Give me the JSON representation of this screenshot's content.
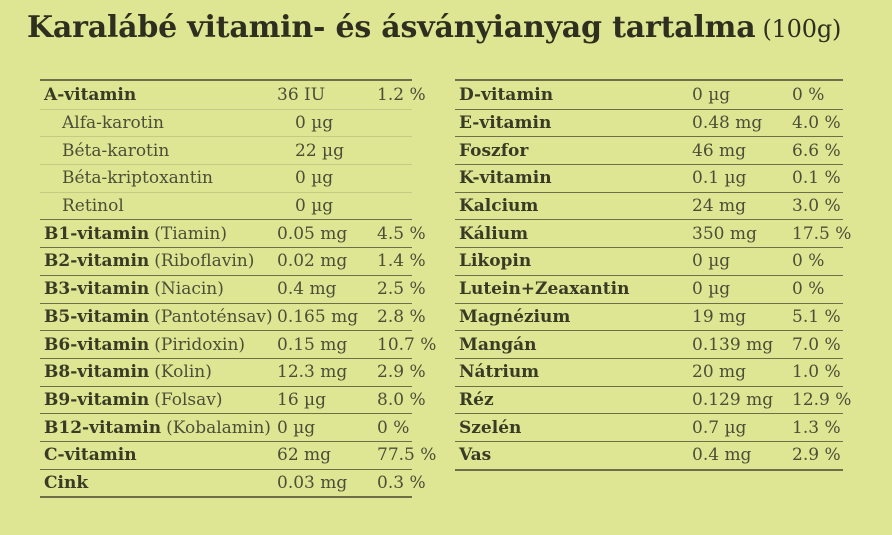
{
  "header": {
    "title": "Karalábé vitamin- és ásványianyag tartalma",
    "serving": "(100g)"
  },
  "theme": {
    "background": "#dee593",
    "title-color": "#2e2f1e",
    "text-strong": "#3a3b25",
    "text-mid": "#4c4e37",
    "dark-line": "#6d6f48",
    "light-line": "#c6ca85"
  },
  "left_table": {
    "rows": [
      {
        "name": "A-vitamin",
        "value": "36 IU",
        "percent": "1.2 %",
        "divider": "none"
      },
      {
        "name": "Alfa-karotin",
        "value": "0 µg",
        "percent": "",
        "divider": "light",
        "indent": true
      },
      {
        "name": "Béta-karotin",
        "value": "22 µg",
        "percent": "",
        "divider": "light",
        "indent": true
      },
      {
        "name": "Béta-kriptoxantin",
        "value": "0 µg",
        "percent": "",
        "divider": "light",
        "indent": true
      },
      {
        "name": "Retinol",
        "value": "0 µg",
        "percent": "",
        "divider": "light",
        "indent": true
      },
      {
        "name": "B1-vitamin",
        "note": "(Tiamin)",
        "value": "0.05 mg",
        "percent": "4.5 %",
        "divider": "dark"
      },
      {
        "name": "B2-vitamin",
        "note": "(Riboflavin)",
        "value": "0.02 mg",
        "percent": "1.4 %",
        "divider": "dark"
      },
      {
        "name": "B3-vitamin",
        "note": "(Niacin)",
        "value": "0.4 mg",
        "percent": "2.5 %",
        "divider": "dark"
      },
      {
        "name": "B5-vitamin",
        "note": "(Pantoténsav)",
        "value": "0.165 mg",
        "percent": "2.8 %",
        "divider": "dark"
      },
      {
        "name": "B6-vitamin",
        "note": "(Piridoxin)",
        "value": "0.15 mg",
        "percent": "10.7 %",
        "divider": "dark"
      },
      {
        "name": "B8-vitamin",
        "note": "(Kolin)",
        "value": "12.3 mg",
        "percent": "2.9 %",
        "divider": "dark"
      },
      {
        "name": "B9-vitamin",
        "note": "(Folsav)",
        "value": "16 µg",
        "percent": "8.0 %",
        "divider": "dark"
      },
      {
        "name": "B12-vitamin",
        "note": "(Kobalamin)",
        "value": "0 µg",
        "percent": "0 %",
        "divider": "dark"
      },
      {
        "name": "C-vitamin",
        "value": "62 mg",
        "percent": "77.5 %",
        "divider": "dark"
      },
      {
        "name": "Cink",
        "value": "0.03 mg",
        "percent": "0.3 %",
        "divider": "dark"
      }
    ]
  },
  "right_table": {
    "rows": [
      {
        "name": "D-vitamin",
        "value": "0 µg",
        "percent": "0 %",
        "divider": "none"
      },
      {
        "name": "E-vitamin",
        "value": "0.48 mg",
        "percent": "4.0 %",
        "divider": "dark"
      },
      {
        "name": "Foszfor",
        "value": "46 mg",
        "percent": "6.6 %",
        "divider": "dark"
      },
      {
        "name": "K-vitamin",
        "value": "0.1 µg",
        "percent": "0.1 %",
        "divider": "dark"
      },
      {
        "name": "Kalcium",
        "value": "24 mg",
        "percent": "3.0 %",
        "divider": "dark"
      },
      {
        "name": "Kálium",
        "value": "350 mg",
        "percent": "17.5 %",
        "divider": "dark"
      },
      {
        "name": "Likopin",
        "value": "0 µg",
        "percent": "0 %",
        "divider": "dark"
      },
      {
        "name": "Lutein+Zeaxantin",
        "value": "0 µg",
        "percent": "0 %",
        "divider": "dark"
      },
      {
        "name": "Magnézium",
        "value": "19 mg",
        "percent": "5.1 %",
        "divider": "dark"
      },
      {
        "name": "Mangán",
        "value": "0.139 mg",
        "percent": "7.0 %",
        "divider": "dark"
      },
      {
        "name": "Nátrium",
        "value": "20 mg",
        "percent": "1.0 %",
        "divider": "dark"
      },
      {
        "name": "Réz",
        "value": "0.129 mg",
        "percent": "12.9 %",
        "divider": "dark"
      },
      {
        "name": "Szelén",
        "value": "0.7 µg",
        "percent": "1.3 %",
        "divider": "dark"
      },
      {
        "name": "Vas",
        "value": "0.4 mg",
        "percent": "2.9 %",
        "divider": "dark"
      }
    ]
  }
}
